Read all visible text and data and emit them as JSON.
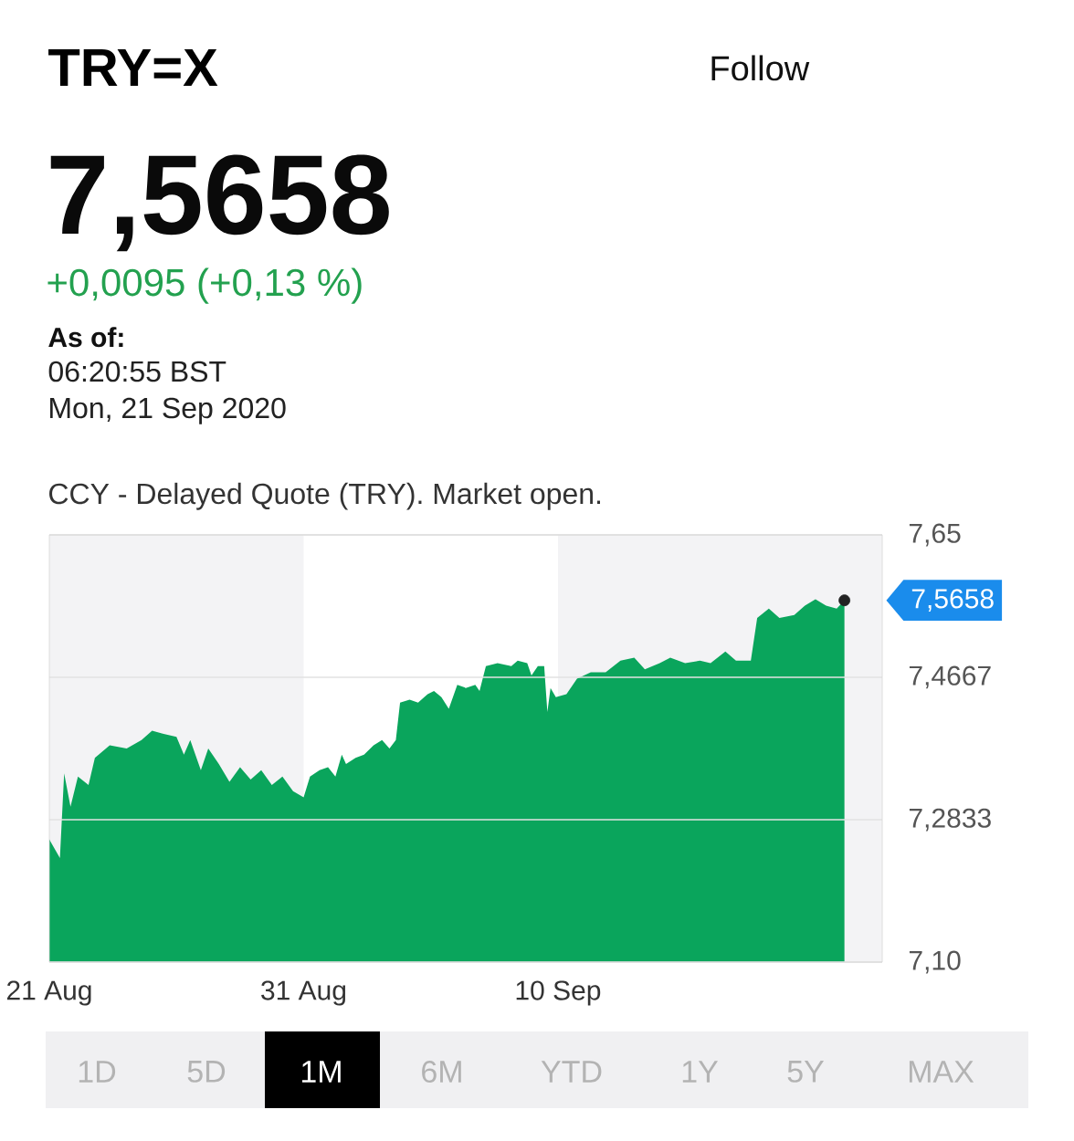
{
  "chart_data": {
    "type": "area",
    "title": "TRY=X",
    "annotations": [
      "Follow",
      "7,5658",
      "+0,0095 (+0,13 %)",
      "As of:",
      "06:20:55 BST",
      "Mon, 21 Sep 2020",
      "CCY - Delayed Quote (TRY). Market open.",
      {
        "text": "7,5658",
        "x": "2020-09-21T06:20",
        "y": 7.5658
      },
      "1D",
      "5D",
      "1M",
      "6M",
      "YTD",
      "1Y",
      "5Y",
      "MAX"
    ],
    "series": [
      {
        "color": "#0aa55c",
        "x": [
          "2020-08-21T00:00",
          "2020-08-21T02:00",
          "2020-08-21T10:00",
          "2020-08-21T14:00",
          "2020-08-21T20:00",
          "2020-08-22T03:00",
          "2020-08-22T13:00",
          "2020-08-22T19:00",
          "2020-08-23T09:00",
          "2020-08-24T01:00",
          "2020-08-24T15:00",
          "2020-08-25T01:00",
          "2020-08-25T11:00",
          "2020-08-26T00:00",
          "2020-08-26T07:00",
          "2020-08-26T13:00",
          "2020-08-26T23:00",
          "2020-08-27T06:00",
          "2020-08-27T16:00",
          "2020-08-28T02:00",
          "2020-08-28T12:00",
          "2020-08-28T22:00",
          "2020-08-29T08:00",
          "2020-08-29T18:00",
          "2020-08-30T04:00",
          "2020-08-30T14:00",
          "2020-08-31T00:00",
          "2020-08-31T06:00",
          "2020-08-31T15:00",
          "2020-08-31T23:00",
          "2020-09-01T06:00",
          "2020-09-01T12:00",
          "2020-09-01T16:00",
          "2020-09-02T01:00",
          "2020-09-02T09:00",
          "2020-09-02T18:00",
          "2020-09-03T02:00",
          "2020-09-03T09:00",
          "2020-09-03T15:00",
          "2020-09-03T19:00",
          "2020-09-04T04:00",
          "2020-09-04T12:00",
          "2020-09-04T21:00",
          "2020-09-05T03:00",
          "2020-09-05T10:00",
          "2020-09-05T17:00",
          "2020-09-06T01:00",
          "2020-09-06T09:00",
          "2020-09-06T18:00",
          "2020-09-06T22:00",
          "2020-09-07T04:00",
          "2020-09-07T15:00",
          "2020-09-08T04:00",
          "2020-09-08T10:00",
          "2020-09-08T19:00",
          "2020-09-08T23:00",
          "2020-09-09T05:00",
          "2020-09-09T11:00",
          "2020-09-09T14:00",
          "2020-09-09T17:00",
          "2020-09-09T22:00",
          "2020-09-10T08:00",
          "2020-09-10T18:00",
          "2020-09-11T07:00",
          "2020-09-11T21:00",
          "2020-09-12T11:00",
          "2020-09-13T00:00",
          "2020-09-13T10:00",
          "2020-09-14T00:00",
          "2020-09-14T10:00",
          "2020-09-15T00:00",
          "2020-09-15T14:00",
          "2020-09-16T00:00",
          "2020-09-16T14:00",
          "2020-09-17T00:00",
          "2020-09-17T14:00",
          "2020-09-17T20:00",
          "2020-09-18T07:00",
          "2020-09-18T17:00",
          "2020-09-19T07:00",
          "2020-09-19T17:00",
          "2020-09-20T03:00",
          "2020-09-20T13:00",
          "2020-09-20T23:00",
          "2020-09-21T06:20"
        ],
        "values": [
          7.258,
          7.253,
          7.234,
          7.343,
          7.3,
          7.339,
          7.328,
          7.363,
          7.379,
          7.375,
          7.386,
          7.398,
          7.394,
          7.39,
          7.367,
          7.386,
          7.347,
          7.375,
          7.355,
          7.332,
          7.351,
          7.335,
          7.347,
          7.328,
          7.339,
          7.32,
          7.312,
          7.339,
          7.347,
          7.351,
          7.339,
          7.367,
          7.355,
          7.363,
          7.367,
          7.379,
          7.386,
          7.375,
          7.386,
          7.434,
          7.438,
          7.434,
          7.445,
          7.449,
          7.441,
          7.426,
          7.457,
          7.453,
          7.457,
          7.449,
          7.481,
          7.485,
          7.481,
          7.488,
          7.485,
          7.469,
          7.481,
          7.481,
          7.422,
          7.453,
          7.441,
          7.445,
          7.465,
          7.473,
          7.473,
          7.488,
          7.492,
          7.477,
          7.485,
          7.492,
          7.485,
          7.488,
          7.485,
          7.5,
          7.488,
          7.488,
          7.543,
          7.555,
          7.543,
          7.547,
          7.559,
          7.567,
          7.559,
          7.555,
          7.5658
        ]
      },
      {
        "type": "scatter",
        "color": "#222222",
        "marker": "circle",
        "x": [
          "2020-09-21T06:20"
        ],
        "values": [
          7.5658
        ]
      }
    ],
    "xlim": [
      "2020-08-21",
      "2020-09-22T18:00"
    ],
    "xticks": [
      {
        "value": "2020-08-21",
        "label": "21 Aug"
      },
      {
        "value": "2020-08-31",
        "label": "31 Aug"
      },
      {
        "value": "2020-09-10",
        "label": "10 Sep"
      }
    ],
    "ylim": [
      7.1,
      7.65
    ],
    "yticks": [
      {
        "value": 7.1,
        "label": "7,10"
      },
      {
        "value": 7.2833,
        "label": "7,2833"
      },
      {
        "value": 7.4667,
        "label": "7,4667"
      },
      {
        "value": 7.65,
        "label": "7,65"
      }
    ],
    "bands": [
      {
        "axis": "x",
        "from": "2020-08-21",
        "to": "2020-08-31",
        "color": "#f3f3f5"
      },
      {
        "axis": "x",
        "from": "2020-09-10",
        "to": "2020-09-22T18:00",
        "color": "#f3f3f5"
      }
    ],
    "grid": "y"
  }
}
